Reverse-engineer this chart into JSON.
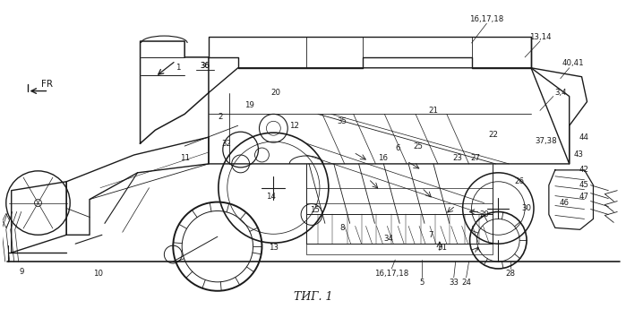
{
  "caption": "ΤИГ. 1",
  "bg_color": "#ffffff",
  "line_color": "#1a1a1a",
  "fig_width": 6.99,
  "fig_height": 3.45,
  "dpi": 100
}
